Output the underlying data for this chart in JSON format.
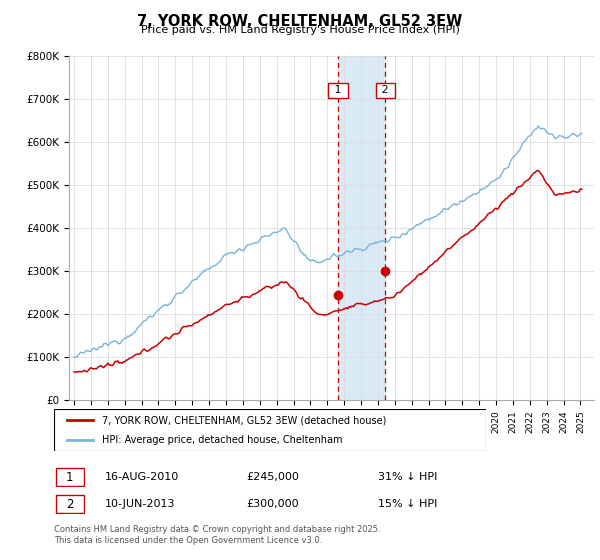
{
  "title": "7, YORK ROW, CHELTENHAM, GL52 3EW",
  "subtitle": "Price paid vs. HM Land Registry's House Price Index (HPI)",
  "hpi_color": "#7ab4d8",
  "price_color": "#cc0000",
  "annotation_color": "#cc0000",
  "shaded_color": "#daeaf5",
  "ylim": [
    0,
    800000
  ],
  "yticks": [
    0,
    100000,
    200000,
    300000,
    400000,
    500000,
    600000,
    700000,
    800000
  ],
  "ytick_labels": [
    "£0",
    "£100K",
    "£200K",
    "£300K",
    "£400K",
    "£500K",
    "£600K",
    "£700K",
    "£800K"
  ],
  "transaction1_date": 2010.625,
  "transaction1_price": 245000,
  "transaction1_label": "1",
  "transaction2_date": 2013.44,
  "transaction2_price": 300000,
  "transaction2_label": "2",
  "legend_entry1": "7, YORK ROW, CHELTENHAM, GL52 3EW (detached house)",
  "legend_entry2": "HPI: Average price, detached house, Cheltenham",
  "table_row1": [
    "1",
    "16-AUG-2010",
    "£245,000",
    "31% ↓ HPI"
  ],
  "table_row2": [
    "2",
    "10-JUN-2013",
    "£300,000",
    "15% ↓ HPI"
  ],
  "footer": "Contains HM Land Registry data © Crown copyright and database right 2025.\nThis data is licensed under the Open Government Licence v3.0.",
  "xlim_start": 1994.7,
  "xlim_end": 2025.8
}
